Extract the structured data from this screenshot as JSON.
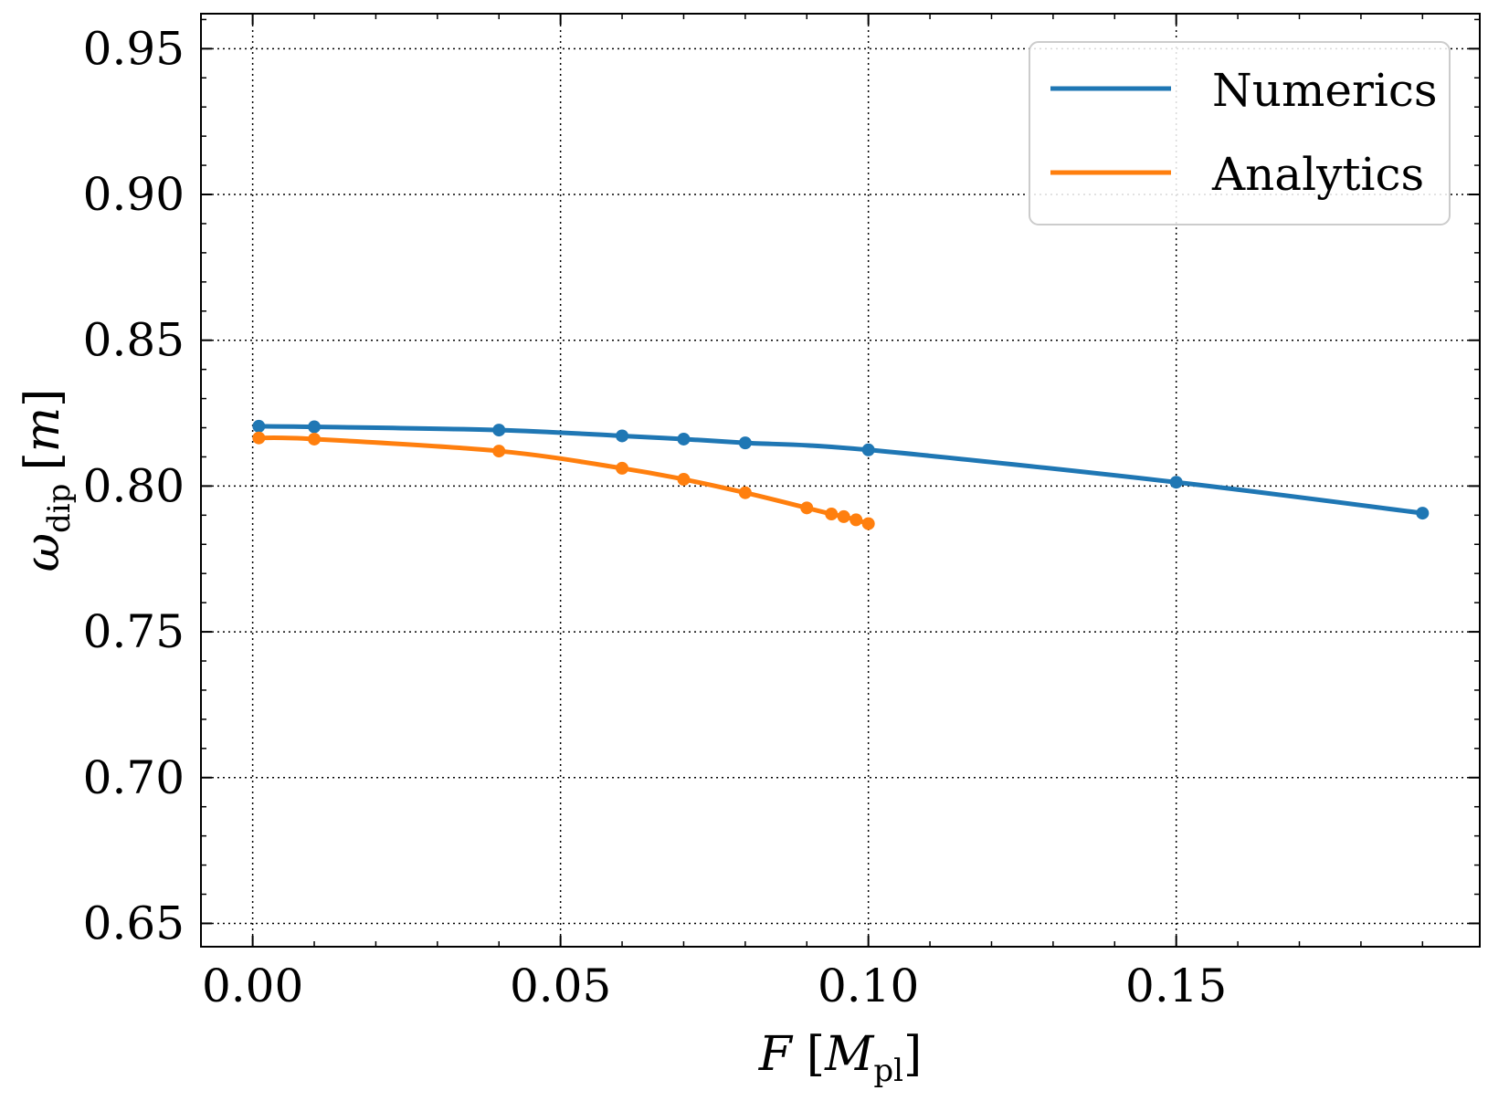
{
  "chart_data": {
    "type": "line",
    "title": "",
    "xlabel": {
      "main": "F",
      "bracket_open": "[",
      "unit": "M",
      "unit_sub": "pl",
      "bracket_close": "]"
    },
    "ylabel": {
      "main": "ω",
      "sub": "dip",
      "bracket_open": "[",
      "unit": "m",
      "bracket_close": "]"
    },
    "xlim": [
      -0.0084,
      0.1993
    ],
    "ylim": [
      0.642,
      0.962
    ],
    "x_ticks": [
      0.0,
      0.05,
      0.1,
      0.15
    ],
    "x_tick_labels": [
      "0.00",
      "0.05",
      "0.10",
      "0.15"
    ],
    "y_ticks": [
      0.65,
      0.7,
      0.75,
      0.8,
      0.85,
      0.9,
      0.95
    ],
    "y_tick_labels": [
      "0.65",
      "0.70",
      "0.75",
      "0.80",
      "0.85",
      "0.90",
      "0.95"
    ],
    "x_minor_step": 0.01,
    "y_minor_step": 0.01,
    "grid": true,
    "legend_position": "top-right",
    "series": [
      {
        "name": "Numerics",
        "color": "#1f77b4",
        "x": [
          0.001,
          0.01,
          0.04,
          0.06,
          0.07,
          0.08,
          0.1,
          0.15,
          0.19
        ],
        "y": [
          0.8205,
          0.8203,
          0.8192,
          0.8172,
          0.8161,
          0.8148,
          0.8124,
          0.8013,
          0.7907
        ]
      },
      {
        "name": "Analytics",
        "color": "#ff7f0e",
        "x": [
          0.001,
          0.01,
          0.04,
          0.06,
          0.07,
          0.08,
          0.09,
          0.094,
          0.096,
          0.098,
          0.1
        ],
        "y": [
          0.8165,
          0.8161,
          0.812,
          0.8061,
          0.8023,
          0.7977,
          0.7925,
          0.7904,
          0.7895,
          0.7884,
          0.7871
        ]
      }
    ]
  }
}
